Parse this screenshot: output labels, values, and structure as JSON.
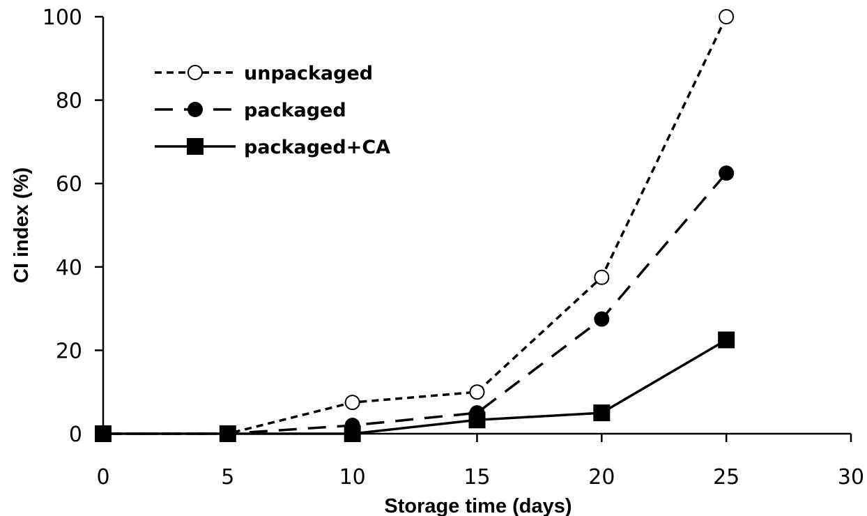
{
  "chart_data": {
    "type": "line",
    "xlabel": "Storage time  (days)",
    "ylabel": "CI index (%)",
    "xlim": [
      0,
      30
    ],
    "ylim": [
      0,
      100
    ],
    "xticks": [
      "0",
      "5",
      "10",
      "15",
      "20",
      "25",
      "30"
    ],
    "yticks": [
      "0",
      "20",
      "40",
      "60",
      "80",
      "100"
    ],
    "grid": false,
    "legend_position": "top-left",
    "x": [
      0,
      5,
      10,
      15,
      20,
      25
    ],
    "series": [
      {
        "name": "unpackaged",
        "values": [
          0,
          0,
          7.5,
          10,
          37.5,
          100
        ],
        "line": "short-dash",
        "marker": "open-circle",
        "color": "#000000"
      },
      {
        "name": "packaged",
        "values": [
          0,
          0,
          2,
          5,
          27.5,
          62.5
        ],
        "line": "long-dash",
        "marker": "filled-circle",
        "color": "#000000"
      },
      {
        "name": "packaged+CA",
        "values": [
          0,
          0,
          0,
          3.3,
          5,
          22.5
        ],
        "line": "solid",
        "marker": "filled-square",
        "color": "#000000"
      }
    ]
  }
}
